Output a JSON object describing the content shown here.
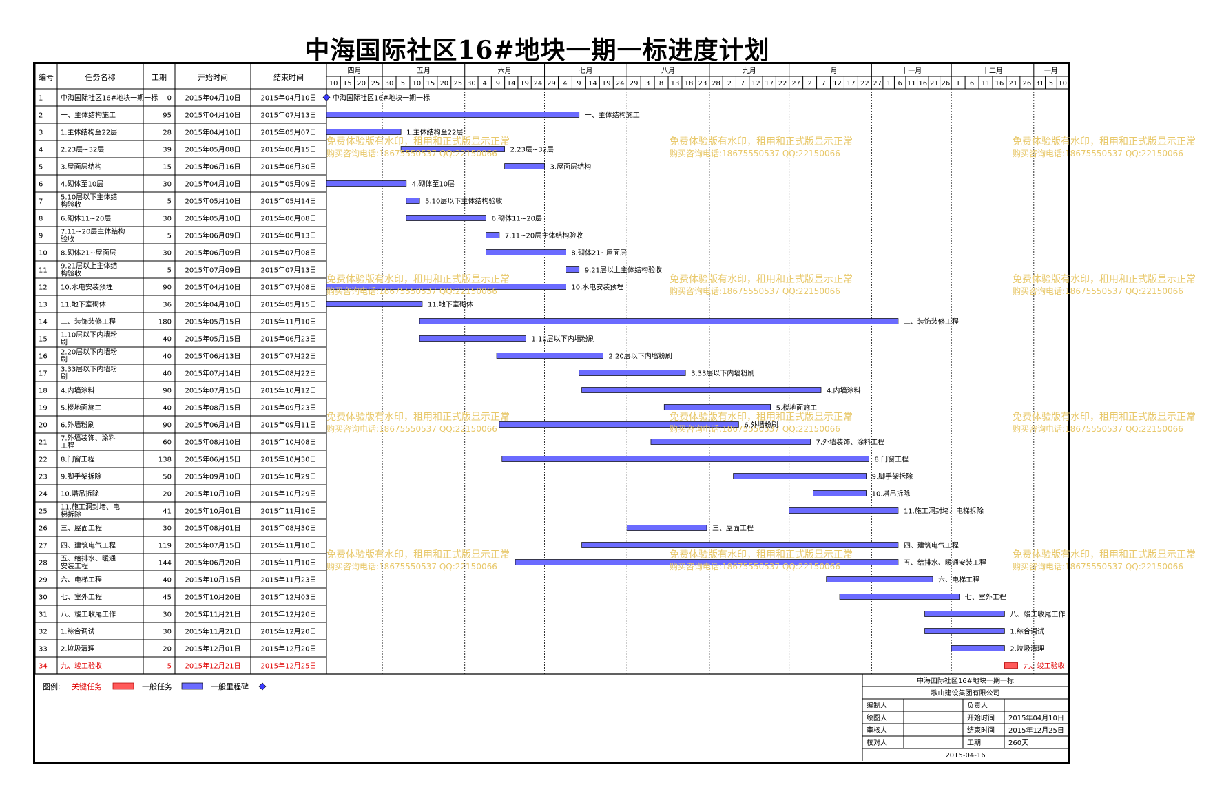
{
  "title": "中海国际社区16#地块一期一标进度计划",
  "headers": {
    "id": "编号",
    "name": "任务名称",
    "dur": "工期",
    "start": "开始时间",
    "end": "结束时间"
  },
  "months": [
    {
      "label": "四月",
      "days": [
        "10",
        "15",
        "20",
        "25"
      ]
    },
    {
      "label": "五月",
      "days": [
        "30",
        "5",
        "10",
        "15",
        "20",
        "25"
      ]
    },
    {
      "label": "六月",
      "days": [
        "30",
        "4",
        "9",
        "14",
        "19",
        "24"
      ]
    },
    {
      "label": "七月",
      "days": [
        "29",
        "4",
        "9",
        "14",
        "19",
        "24"
      ]
    },
    {
      "label": "八月",
      "days": [
        "29",
        "3",
        "8",
        "13",
        "18",
        "23"
      ]
    },
    {
      "label": "九月",
      "days": [
        "28",
        "2",
        "7",
        "12",
        "17",
        "22"
      ]
    },
    {
      "label": "十月",
      "days": [
        "27",
        "2",
        "7",
        "12",
        "17",
        "22"
      ]
    },
    {
      "label": "十一月",
      "days": [
        "27",
        "1",
        "6",
        "11",
        "16",
        "21",
        "26"
      ]
    },
    {
      "label": "十二月",
      "days": [
        "1",
        "6",
        "11",
        "16",
        "21",
        "26"
      ]
    },
    {
      "label": "一月",
      "days": [
        "31",
        "5",
        "10"
      ]
    }
  ],
  "chart_data": {
    "type": "gantt",
    "timeline_start": "2015-04-10",
    "timeline_end": "2016-01-14",
    "tasks": [
      {
        "id": "1",
        "name": "中海国际社区16#地块一期一标",
        "name2": "",
        "dur": "0",
        "start": "2015年04月10日",
        "end": "2015年04月10日",
        "s": "2015-04-10",
        "e": "2015-04-10",
        "type": "milestone",
        "label": "中海国际社区16#地块一期一标"
      },
      {
        "id": "2",
        "name": "一、主体结构施工",
        "name2": "",
        "dur": "95",
        "start": "2015年04月10日",
        "end": "2015年07月13日",
        "s": "2015-04-10",
        "e": "2015-07-13",
        "type": "normal",
        "label": "一、主体结构施工"
      },
      {
        "id": "3",
        "name": "1.主体结构至22层",
        "name2": "",
        "dur": "28",
        "start": "2015年04月10日",
        "end": "2015年05月07日",
        "s": "2015-04-10",
        "e": "2015-05-07",
        "type": "normal",
        "label": "1.主体结构至22层"
      },
      {
        "id": "4",
        "name": "2.23层~32层",
        "name2": "",
        "dur": "39",
        "start": "2015年05月08日",
        "end": "2015年06月15日",
        "s": "2015-05-08",
        "e": "2015-06-15",
        "type": "normal",
        "label": "2.23层~32层"
      },
      {
        "id": "5",
        "name": "3.屋面层结构",
        "name2": "",
        "dur": "15",
        "start": "2015年06月16日",
        "end": "2015年06月30日",
        "s": "2015-06-16",
        "e": "2015-06-30",
        "type": "normal",
        "label": "3.屋面层结构"
      },
      {
        "id": "6",
        "name": "4.砌体至10层",
        "name2": "",
        "dur": "30",
        "start": "2015年04月10日",
        "end": "2015年05月09日",
        "s": "2015-04-10",
        "e": "2015-05-09",
        "type": "normal",
        "label": "4.砌体至10层"
      },
      {
        "id": "7",
        "name": "5.10层以下主体结",
        "name2": "构验收",
        "dur": "5",
        "start": "2015年05月10日",
        "end": "2015年05月14日",
        "s": "2015-05-10",
        "e": "2015-05-14",
        "type": "normal",
        "label": "5.10层以下主体结构验收"
      },
      {
        "id": "8",
        "name": "6.砌体11~20层",
        "name2": "",
        "dur": "30",
        "start": "2015年05月10日",
        "end": "2015年06月08日",
        "s": "2015-05-10",
        "e": "2015-06-08",
        "type": "normal",
        "label": "6.砌体11~20层"
      },
      {
        "id": "9",
        "name": "7.11~20层主体结构",
        "name2": "验收",
        "dur": "5",
        "start": "2015年06月09日",
        "end": "2015年06月13日",
        "s": "2015-06-09",
        "e": "2015-06-13",
        "type": "normal",
        "label": "7.11~20层主体结构验收"
      },
      {
        "id": "10",
        "name": "8.砌体21~屋面层",
        "name2": "",
        "dur": "30",
        "start": "2015年06月09日",
        "end": "2015年07月08日",
        "s": "2015-06-09",
        "e": "2015-07-08",
        "type": "normal",
        "label": "8.砌体21~屋面层"
      },
      {
        "id": "11",
        "name": "9.21层以上主体结",
        "name2": "构验收",
        "dur": "5",
        "start": "2015年07月09日",
        "end": "2015年07月13日",
        "s": "2015-07-09",
        "e": "2015-07-13",
        "type": "normal",
        "label": "9.21层以上主体结构验收"
      },
      {
        "id": "12",
        "name": "10.水电安装预埋",
        "name2": "",
        "dur": "90",
        "start": "2015年04月10日",
        "end": "2015年07月08日",
        "s": "2015-04-10",
        "e": "2015-07-08",
        "type": "normal",
        "label": "10.水电安装预埋"
      },
      {
        "id": "13",
        "name": "11.地下室砌体",
        "name2": "",
        "dur": "36",
        "start": "2015年04月10日",
        "end": "2015年05月15日",
        "s": "2015-04-10",
        "e": "2015-05-15",
        "type": "normal",
        "label": "11.地下室砌体"
      },
      {
        "id": "14",
        "name": "二、装饰装修工程",
        "name2": "",
        "dur": "180",
        "start": "2015年05月15日",
        "end": "2015年11月10日",
        "s": "2015-05-15",
        "e": "2015-11-10",
        "type": "normal",
        "label": "二、装饰装修工程"
      },
      {
        "id": "15",
        "name": "1.10层以下内墙粉",
        "name2": "刷",
        "dur": "40",
        "start": "2015年05月15日",
        "end": "2015年06月23日",
        "s": "2015-05-15",
        "e": "2015-06-23",
        "type": "normal",
        "label": "1.10层以下内墙粉刷"
      },
      {
        "id": "16",
        "name": "2.20层以下内墙粉",
        "name2": "刷",
        "dur": "40",
        "start": "2015年06月13日",
        "end": "2015年07月22日",
        "s": "2015-06-13",
        "e": "2015-07-22",
        "type": "normal",
        "label": "2.20层以下内墙粉刷"
      },
      {
        "id": "17",
        "name": "3.33层以下内墙粉",
        "name2": "刷",
        "dur": "40",
        "start": "2015年07月14日",
        "end": "2015年08月22日",
        "s": "2015-07-14",
        "e": "2015-08-22",
        "type": "normal",
        "label": "3.33层以下内墙粉刷"
      },
      {
        "id": "18",
        "name": "4.内墙涂料",
        "name2": "",
        "dur": "90",
        "start": "2015年07月15日",
        "end": "2015年10月12日",
        "s": "2015-07-15",
        "e": "2015-10-12",
        "type": "normal",
        "label": "4.内墙涂料"
      },
      {
        "id": "19",
        "name": "5.楼地面施工",
        "name2": "",
        "dur": "40",
        "start": "2015年08月15日",
        "end": "2015年09月23日",
        "s": "2015-08-15",
        "e": "2015-09-23",
        "type": "normal",
        "label": "5.楼地面施工"
      },
      {
        "id": "20",
        "name": "6.外墙粉刷",
        "name2": "",
        "dur": "90",
        "start": "2015年06月14日",
        "end": "2015年09月11日",
        "s": "2015-06-14",
        "e": "2015-09-11",
        "type": "normal",
        "label": "6.外墙粉刷"
      },
      {
        "id": "21",
        "name": "7.外墙装饰、涂料",
        "name2": "工程",
        "dur": "60",
        "start": "2015年08月10日",
        "end": "2015年10月08日",
        "s": "2015-08-10",
        "e": "2015-10-08",
        "type": "normal",
        "label": "7.外墙装饰、涂料工程"
      },
      {
        "id": "22",
        "name": "8.门窗工程",
        "name2": "",
        "dur": "138",
        "start": "2015年06月15日",
        "end": "2015年10月30日",
        "s": "2015-06-15",
        "e": "2015-10-30",
        "type": "normal",
        "label": "8.门窗工程"
      },
      {
        "id": "23",
        "name": "9.脚手架拆除",
        "name2": "",
        "dur": "50",
        "start": "2015年09月10日",
        "end": "2015年10月29日",
        "s": "2015-09-10",
        "e": "2015-10-29",
        "type": "normal",
        "label": "9.脚手架拆除"
      },
      {
        "id": "24",
        "name": "10.塔吊拆除",
        "name2": "",
        "dur": "20",
        "start": "2015年10月10日",
        "end": "2015年10月29日",
        "s": "2015-10-10",
        "e": "2015-10-29",
        "type": "normal",
        "label": "10.塔吊拆除"
      },
      {
        "id": "25",
        "name": "11.施工洞封堵、电",
        "name2": "梯拆除",
        "dur": "41",
        "start": "2015年10月01日",
        "end": "2015年11月10日",
        "s": "2015-10-01",
        "e": "2015-11-10",
        "type": "normal",
        "label": "11.施工洞封堵、电梯拆除"
      },
      {
        "id": "26",
        "name": "三、屋面工程",
        "name2": "",
        "dur": "30",
        "start": "2015年08月01日",
        "end": "2015年08月30日",
        "s": "2015-08-01",
        "e": "2015-08-30",
        "type": "normal",
        "label": "三、屋面工程"
      },
      {
        "id": "27",
        "name": "四、建筑电气工程",
        "name2": "",
        "dur": "119",
        "start": "2015年07月15日",
        "end": "2015年11月10日",
        "s": "2015-07-15",
        "e": "2015-11-10",
        "type": "normal",
        "label": "四、建筑电气工程"
      },
      {
        "id": "28",
        "name": "五、给排水、暖通",
        "name2": "安装工程",
        "dur": "144",
        "start": "2015年06月20日",
        "end": "2015年11月10日",
        "s": "2015-06-20",
        "e": "2015-11-10",
        "type": "normal",
        "label": "五、给排水、暖通安装工程"
      },
      {
        "id": "29",
        "name": "六、电梯工程",
        "name2": "",
        "dur": "40",
        "start": "2015年10月15日",
        "end": "2015年11月23日",
        "s": "2015-10-15",
        "e": "2015-11-23",
        "type": "normal",
        "label": "六、电梯工程"
      },
      {
        "id": "30",
        "name": "七、室外工程",
        "name2": "",
        "dur": "45",
        "start": "2015年10月20日",
        "end": "2015年12月03日",
        "s": "2015-10-20",
        "e": "2015-12-03",
        "type": "normal",
        "label": "七、室外工程"
      },
      {
        "id": "31",
        "name": "八、竣工收尾工作",
        "name2": "",
        "dur": "30",
        "start": "2015年11月21日",
        "end": "2015年12月20日",
        "s": "2015-11-21",
        "e": "2015-12-20",
        "type": "normal",
        "label": "八、竣工收尾工作"
      },
      {
        "id": "32",
        "name": "1.综合调试",
        "name2": "",
        "dur": "30",
        "start": "2015年11月21日",
        "end": "2015年12月20日",
        "s": "2015-11-21",
        "e": "2015-12-20",
        "type": "normal",
        "label": "1.综合调试"
      },
      {
        "id": "33",
        "name": "2.垃圾清理",
        "name2": "",
        "dur": "20",
        "start": "2015年12月01日",
        "end": "2015年12月20日",
        "s": "2015-12-01",
        "e": "2015-12-20",
        "type": "normal",
        "label": "2.垃圾清理"
      },
      {
        "id": "34",
        "name": "九、竣工验收",
        "name2": "",
        "dur": "5",
        "start": "2015年12月21日",
        "end": "2015年12月25日",
        "s": "2015-12-21",
        "e": "2015-12-25",
        "type": "critical",
        "label": "九、竣工验收"
      }
    ]
  },
  "legend": {
    "title": "图例:",
    "critical": "关键任务",
    "normal": "一般任务",
    "milestone": "一般里程碑"
  },
  "info": {
    "project": "中海国际社区16#地块一期一标",
    "company": "歌山建设集团有限公司",
    "rows": [
      [
        "编制人",
        "",
        "负责人",
        ""
      ],
      [
        "绘图人",
        "",
        "开始时间",
        "2015年04月10日"
      ],
      [
        "审核人",
        "",
        "结束时间",
        "2015年12月25日"
      ],
      [
        "校对人",
        "",
        "工期",
        "260天"
      ]
    ],
    "date": "2015-04-16"
  },
  "watermark": {
    "line1": "免费体验版有水印，租用和正式版显示正常",
    "line2": "购买咨询电话:18675550537 QQ:22150066"
  },
  "colors": {
    "normal": "#6b6bff",
    "critical": "#ff5a5a",
    "milestone": "#3c3cff",
    "critical_text": "#e00000",
    "watermark": "#e8c86a"
  }
}
